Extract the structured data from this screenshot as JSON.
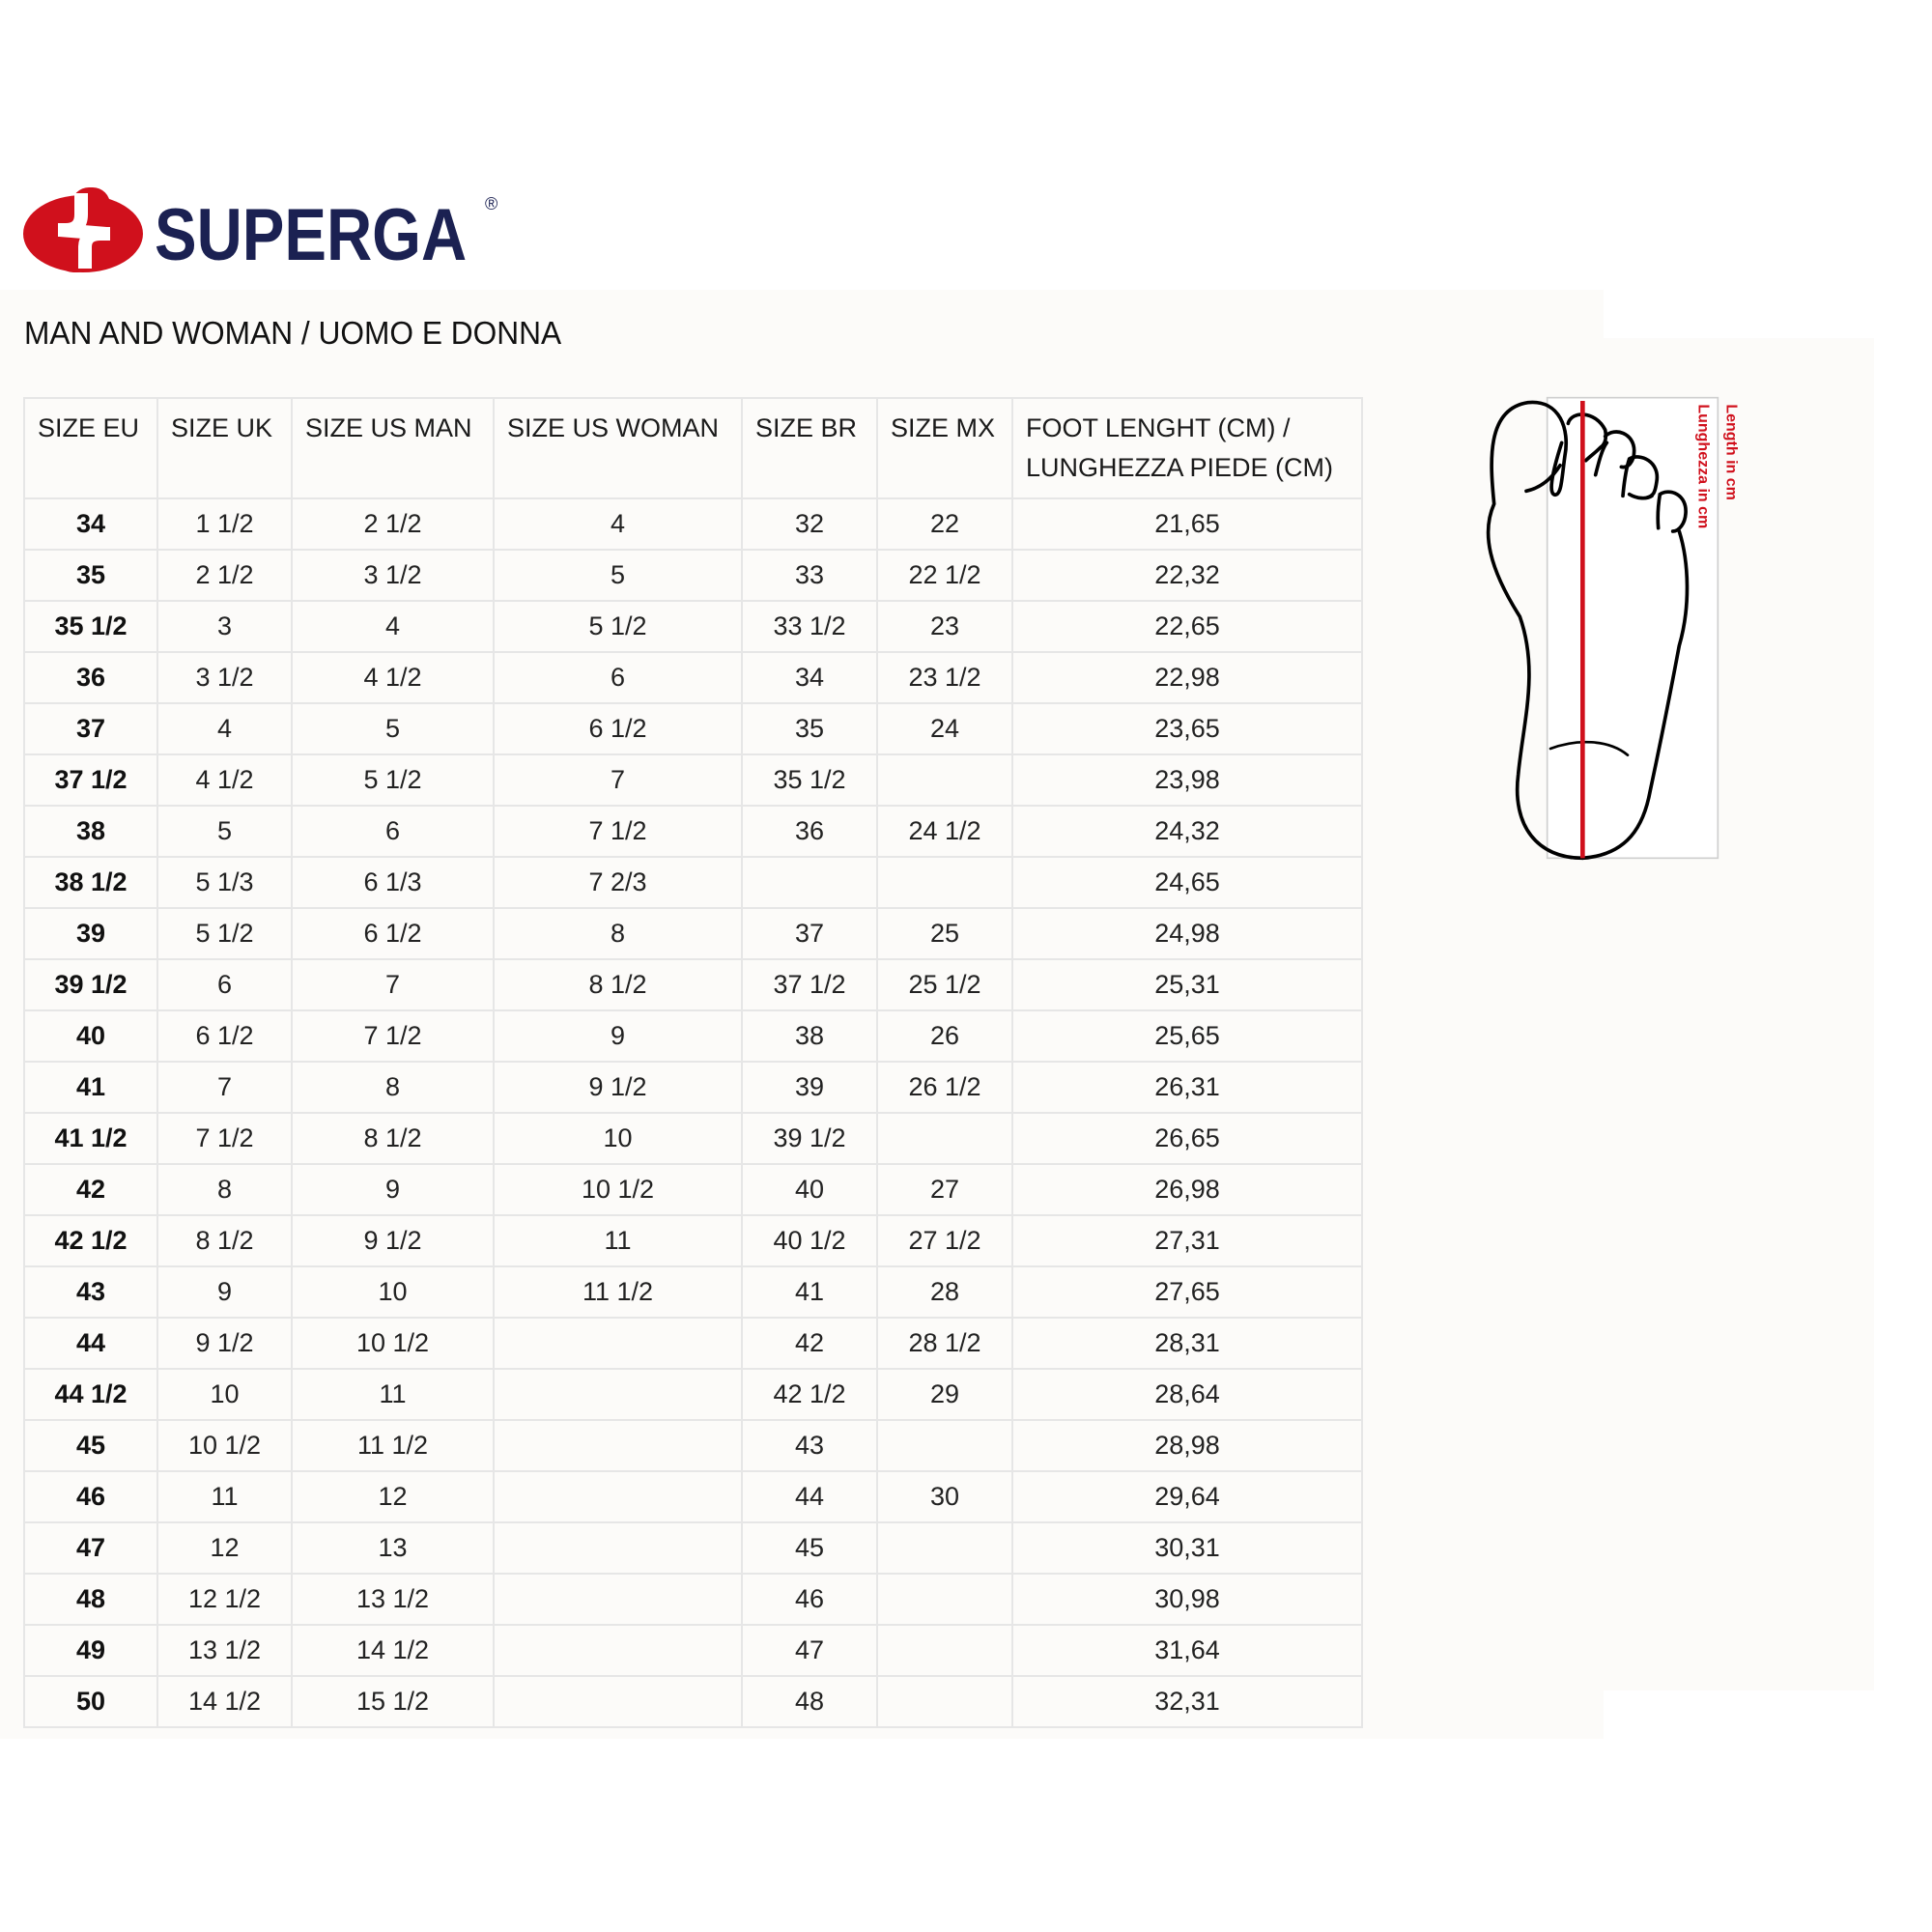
{
  "brand": {
    "name": "SUPERGA",
    "registered": "®",
    "colors": {
      "red": "#d0101c",
      "navy": "#1b2152"
    }
  },
  "subtitle": "MAN AND WOMAN / UOMO E DONNA",
  "table": {
    "headers": [
      "SIZE EU",
      "SIZE UK",
      "SIZE US MAN",
      "SIZE US WOMAN",
      "SIZE BR",
      "SIZE MX",
      "FOOT LENGHT (CM) / LUNGHEZZA PIEDE (CM)"
    ],
    "rows": [
      [
        "34",
        "1 1/2",
        "2 1/2",
        "4",
        "32",
        "22",
        "21,65"
      ],
      [
        "35",
        "2 1/2",
        "3 1/2",
        "5",
        "33",
        "22 1/2",
        "22,32"
      ],
      [
        "35 1/2",
        "3",
        "4",
        "5 1/2",
        "33 1/2",
        "23",
        "22,65"
      ],
      [
        "36",
        "3 1/2",
        "4 1/2",
        "6",
        "34",
        "23 1/2",
        "22,98"
      ],
      [
        "37",
        "4",
        "5",
        "6 1/2",
        "35",
        "24",
        "23,65"
      ],
      [
        "37 1/2",
        "4 1/2",
        "5 1/2",
        "7",
        "35 1/2",
        "",
        "23,98"
      ],
      [
        "38",
        "5",
        "6",
        "7 1/2",
        "36",
        "24 1/2",
        "24,32"
      ],
      [
        "38 1/2",
        "5 1/3",
        "6 1/3",
        "7 2/3",
        "",
        "",
        "24,65"
      ],
      [
        "39",
        "5 1/2",
        "6 1/2",
        "8",
        "37",
        "25",
        "24,98"
      ],
      [
        "39 1/2",
        "6",
        "7",
        "8 1/2",
        "37 1/2",
        "25 1/2",
        "25,31"
      ],
      [
        "40",
        "6 1/2",
        "7 1/2",
        "9",
        "38",
        "26",
        "25,65"
      ],
      [
        "41",
        "7",
        "8",
        "9 1/2",
        "39",
        "26 1/2",
        "26,31"
      ],
      [
        "41 1/2",
        "7 1/2",
        "8 1/2",
        "10",
        "39 1/2",
        "",
        "26,65"
      ],
      [
        "42",
        "8",
        "9",
        "10 1/2",
        "40",
        "27",
        "26,98"
      ],
      [
        "42 1/2",
        "8 1/2",
        "9 1/2",
        "11",
        "40 1/2",
        "27 1/2",
        "27,31"
      ],
      [
        "43",
        "9",
        "10",
        "11 1/2",
        "41",
        "28",
        "27,65"
      ],
      [
        "44",
        "9 1/2",
        "10 1/2",
        "",
        "42",
        "28 1/2",
        "28,31"
      ],
      [
        "44 1/2",
        "10",
        "11",
        "",
        "42 1/2",
        "29",
        "28,64"
      ],
      [
        "45",
        "10 1/2",
        "11 1/2",
        "",
        "43",
        "",
        "28,98"
      ],
      [
        "46",
        "11",
        "12",
        "",
        "44",
        "30",
        "29,64"
      ],
      [
        "47",
        "12",
        "13",
        "",
        "45",
        "",
        "30,31"
      ],
      [
        "48",
        "12 1/2",
        "13 1/2",
        "",
        "46",
        "",
        "30,98"
      ],
      [
        "49",
        "13 1/2",
        "14 1/2",
        "",
        "47",
        "",
        "31,64"
      ],
      [
        "50",
        "14 1/2",
        "15 1/2",
        "",
        "48",
        "",
        "32,31"
      ]
    ]
  },
  "foot_diagram": {
    "label_en": "Length in cm",
    "label_it": "Lunghezza in cm",
    "measure_color": "#d0101c"
  }
}
